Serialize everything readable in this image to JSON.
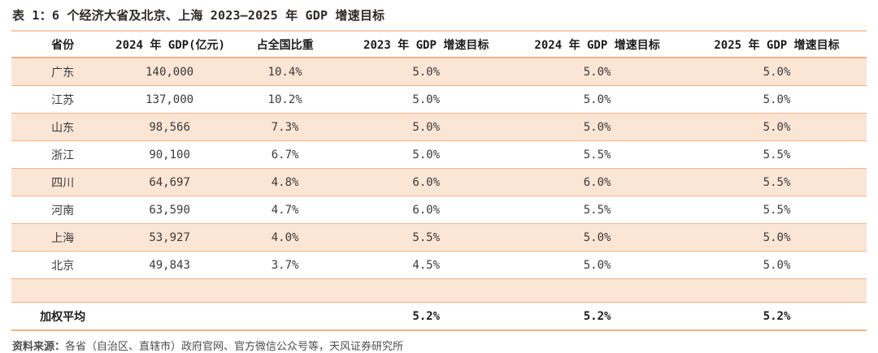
{
  "title": "表 1：6 个经济大省及北京、上海 2023—2025 年 GDP 增速目标",
  "source": {
    "label": "资料来源：",
    "text": "各省（自治区、直辖市）政府官网、官方微信公众号等，天风证券研究所"
  },
  "colors": {
    "accent_rule": "#f5b183",
    "accent_rule_light": "#f8cbad",
    "row_stripe_fill": "#fbe5d5",
    "title_ink": "#2f2a27"
  },
  "chart_data": {
    "type": "table",
    "columns": [
      "省份",
      "2024 年 GDP(亿元)",
      "占全国比重",
      "2023 年 GDP 增速目标",
      "2024 年 GDP 增速目标",
      "2025 年 GDP 增速目标"
    ],
    "rows": [
      [
        "广东",
        "140,000",
        "10.4%",
        "5.0%",
        "5.0%",
        "5.0%"
      ],
      [
        "江苏",
        "137,000",
        "10.2%",
        "5.0%",
        "5.0%",
        "5.0%"
      ],
      [
        "山东",
        "98,566",
        "7.3%",
        "5.0%",
        "5.0%",
        "5.0%"
      ],
      [
        "浙江",
        "90,100",
        "6.7%",
        "5.0%",
        "5.5%",
        "5.5%"
      ],
      [
        "四川",
        "64,697",
        "4.8%",
        "6.0%",
        "6.0%",
        "5.5%"
      ],
      [
        "河南",
        "63,590",
        "4.7%",
        "6.0%",
        "5.5%",
        "5.5%"
      ],
      [
        "上海",
        "53,927",
        "4.0%",
        "5.5%",
        "5.0%",
        "5.0%"
      ],
      [
        "北京",
        "49,843",
        "3.7%",
        "4.5%",
        "5.0%",
        "5.0%"
      ]
    ],
    "summary_row": [
      "加权平均",
      "",
      "",
      "5.2%",
      "5.2%",
      "5.2%"
    ],
    "column_widths_pct": [
      12,
      13,
      14,
      19,
      21,
      21
    ]
  }
}
